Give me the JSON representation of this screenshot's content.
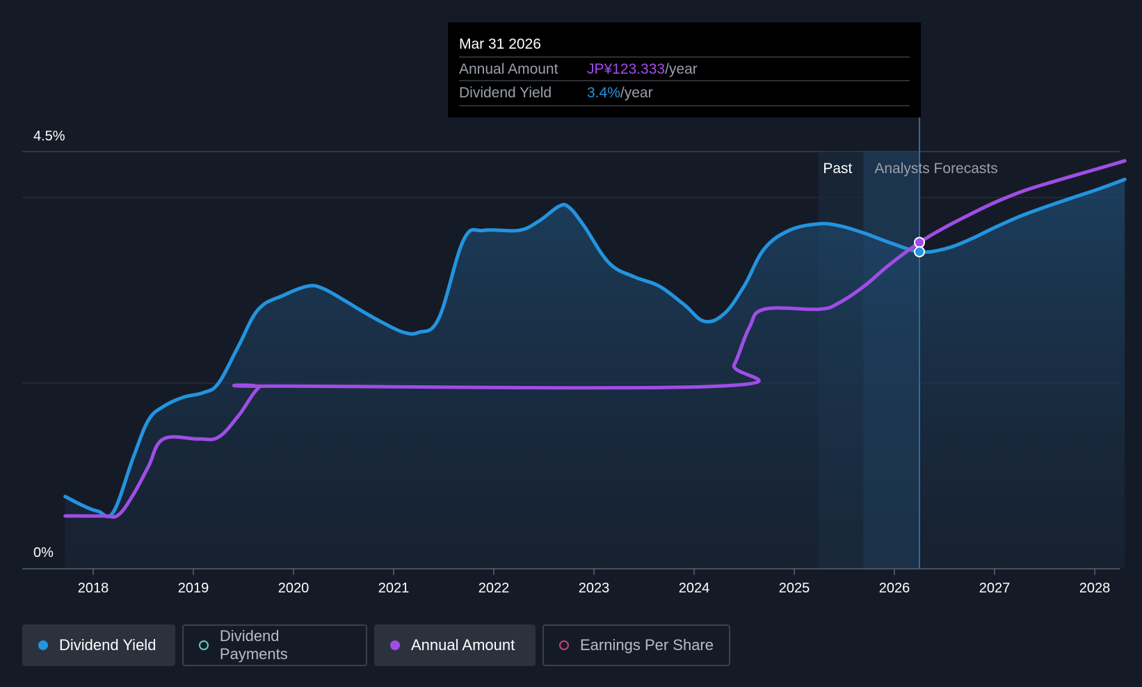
{
  "chart_data": {
    "type": "line",
    "y_axis": {
      "top_label": "4.5%",
      "bottom_label": "0%",
      "ylim": [
        0,
        4.5
      ]
    },
    "x_axis": {
      "tick_labels": [
        "2018",
        "2019",
        "2020",
        "2021",
        "2022",
        "2023",
        "2024",
        "2025",
        "2026",
        "2027",
        "2028"
      ],
      "xlim": [
        2017.6,
        2028.3
      ]
    },
    "regions": {
      "past_label": "Past",
      "forecast_label": "Analysts Forecasts",
      "past_start": 2025.24,
      "forecast_start": 2025.69,
      "divider": 2026.25
    },
    "series": [
      {
        "name": "Dividend Yield",
        "color": "#2394df",
        "filled": true,
        "points": [
          [
            2017.72,
            0.78
          ],
          [
            2017.9,
            0.68
          ],
          [
            2018.05,
            0.62
          ],
          [
            2018.2,
            0.61
          ],
          [
            2018.4,
            1.2
          ],
          [
            2018.55,
            1.6
          ],
          [
            2018.7,
            1.75
          ],
          [
            2018.9,
            1.85
          ],
          [
            2019.1,
            1.9
          ],
          [
            2019.25,
            2.0
          ],
          [
            2019.45,
            2.4
          ],
          [
            2019.65,
            2.8
          ],
          [
            2019.9,
            2.95
          ],
          [
            2020.15,
            3.05
          ],
          [
            2020.3,
            3.02
          ],
          [
            2020.5,
            2.9
          ],
          [
            2020.7,
            2.77
          ],
          [
            2020.9,
            2.65
          ],
          [
            2021.1,
            2.55
          ],
          [
            2021.25,
            2.55
          ],
          [
            2021.45,
            2.7
          ],
          [
            2021.7,
            3.55
          ],
          [
            2021.9,
            3.65
          ],
          [
            2022.25,
            3.65
          ],
          [
            2022.45,
            3.75
          ],
          [
            2022.65,
            3.91
          ],
          [
            2022.75,
            3.9
          ],
          [
            2022.9,
            3.7
          ],
          [
            2023.15,
            3.3
          ],
          [
            2023.4,
            3.15
          ],
          [
            2023.65,
            3.05
          ],
          [
            2023.9,
            2.85
          ],
          [
            2024.1,
            2.67
          ],
          [
            2024.3,
            2.75
          ],
          [
            2024.5,
            3.05
          ],
          [
            2024.7,
            3.45
          ],
          [
            2024.95,
            3.65
          ],
          [
            2025.24,
            3.72
          ],
          [
            2025.45,
            3.7
          ],
          [
            2025.7,
            3.62
          ],
          [
            2025.95,
            3.52
          ],
          [
            2026.25,
            3.42
          ],
          [
            2026.5,
            3.45
          ],
          [
            2026.75,
            3.55
          ],
          [
            2027.0,
            3.68
          ],
          [
            2027.25,
            3.8
          ],
          [
            2027.5,
            3.9
          ],
          [
            2027.8,
            4.01
          ],
          [
            2028.05,
            4.1
          ],
          [
            2028.3,
            4.2
          ]
        ]
      },
      {
        "name": "Annual Amount",
        "color": "#a04de6",
        "filled": false,
        "points": [
          [
            2017.72,
            0.57
          ],
          [
            2018.1,
            0.57
          ],
          [
            2018.25,
            0.58
          ],
          [
            2018.4,
            0.8
          ],
          [
            2018.55,
            1.1
          ],
          [
            2018.7,
            1.4
          ],
          [
            2019.05,
            1.4
          ],
          [
            2019.25,
            1.42
          ],
          [
            2019.45,
            1.65
          ],
          [
            2019.65,
            1.95
          ],
          [
            2019.8,
            1.97
          ],
          [
            2024.25,
            1.97
          ],
          [
            2024.4,
            2.2
          ],
          [
            2024.55,
            2.6
          ],
          [
            2024.7,
            2.8
          ],
          [
            2025.25,
            2.8
          ],
          [
            2025.45,
            2.87
          ],
          [
            2025.7,
            3.05
          ],
          [
            2025.95,
            3.28
          ],
          [
            2026.25,
            3.52
          ],
          [
            2026.5,
            3.68
          ],
          [
            2026.75,
            3.82
          ],
          [
            2027.0,
            3.95
          ],
          [
            2027.3,
            4.08
          ],
          [
            2027.6,
            4.18
          ],
          [
            2027.95,
            4.29
          ],
          [
            2028.3,
            4.4
          ]
        ]
      }
    ],
    "highlight": {
      "x": 2026.25,
      "yield_value": 3.42,
      "amount_value": 3.52
    }
  },
  "tooltip": {
    "date": "Mar 31 2026",
    "rows": [
      {
        "label": "Annual Amount",
        "value": "JP¥123.333",
        "unit": "/year",
        "color": "#a04de6"
      },
      {
        "label": "Dividend Yield",
        "value": "3.4%",
        "unit": "/year",
        "color": "#2394df"
      }
    ]
  },
  "legend": [
    {
      "label": "Dividend Yield",
      "color": "#2394df",
      "active": true,
      "filled": true
    },
    {
      "label": "Dividend Payments",
      "color": "#5ccfc4",
      "active": false,
      "filled": false
    },
    {
      "label": "Annual Amount",
      "color": "#a04de6",
      "active": true,
      "filled": true
    },
    {
      "label": "Earnings Per Share",
      "color": "#c8407a",
      "active": false,
      "filled": false
    }
  ],
  "colors": {
    "background": "#151b26",
    "grid": "#2c3340",
    "axis": "#5a6170",
    "tooltip_bg": "#000000",
    "forecast_band": "#1f3a56"
  }
}
